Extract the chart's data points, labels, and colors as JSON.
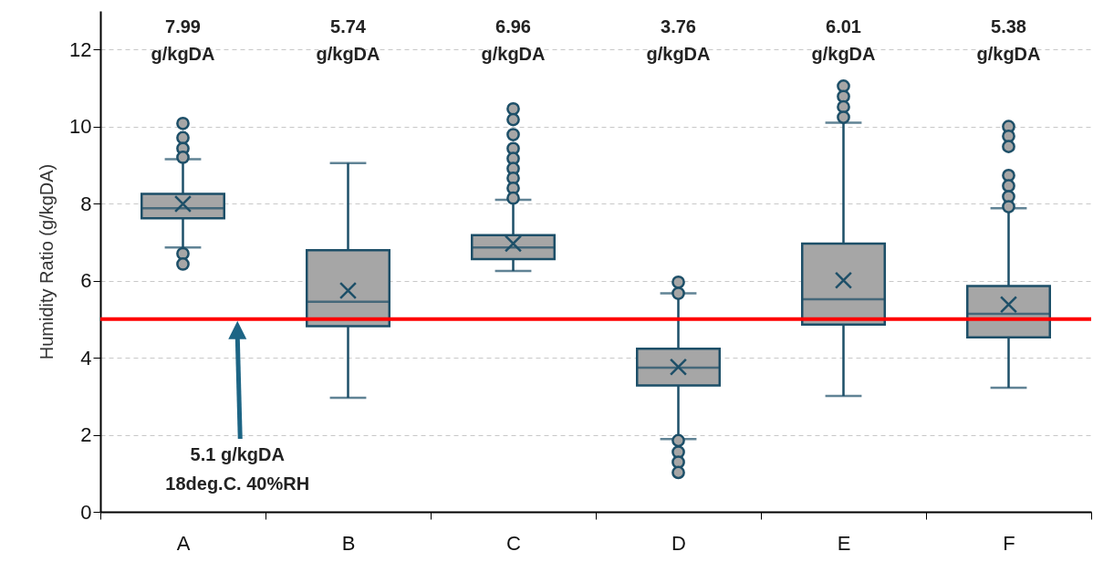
{
  "chart_data": {
    "type": "box",
    "ylabel": "Humidity Ratio (g/kgDA)",
    "categories": [
      "A",
      "B",
      "C",
      "D",
      "E",
      "F"
    ],
    "series": [
      {
        "color": "#a6a6a6",
        "boxes": [
          {
            "low": 6.86,
            "q1": 7.62,
            "median": 7.88,
            "q3": 8.25,
            "high": 9.15,
            "mean": 7.99,
            "outliers": [
              10.08,
              9.71,
              9.43,
              9.2,
              6.7,
              6.43
            ]
          },
          {
            "low": 2.96,
            "q1": 4.82,
            "median": 5.45,
            "q3": 6.79,
            "high": 9.05,
            "mean": 5.74
          },
          {
            "low": 6.25,
            "q1": 6.56,
            "median": 6.86,
            "q3": 7.18,
            "high": 8.1,
            "mean": 6.96,
            "outliers": [
              10.46,
              10.18,
              9.79,
              9.43,
              9.17,
              8.91,
              8.66,
              8.4,
              8.14
            ]
          },
          {
            "low": 1.89,
            "q1": 3.28,
            "median": 3.74,
            "q3": 4.23,
            "high": 5.67,
            "mean": 3.76,
            "outliers": [
              5.96,
              5.67,
              1.85,
              1.55,
              1.29,
              1.02
            ]
          },
          {
            "low": 3.01,
            "q1": 4.86,
            "median": 5.52,
            "q3": 6.96,
            "high": 10.1,
            "mean": 6.01,
            "outliers": [
              11.05,
              10.78,
              10.51,
              10.24
            ]
          },
          {
            "low": 3.22,
            "q1": 4.53,
            "median": 5.14,
            "q3": 5.86,
            "high": 7.88,
            "mean": 5.38,
            "outliers": [
              10.0,
              9.75,
              9.48,
              8.73,
              8.46,
              8.18,
              7.92
            ]
          }
        ],
        "value_labels": [
          "7.99 g/kgDA",
          "5.74 g/kgDA",
          "6.96 g/kgDA",
          "3.76 g/kgDA",
          "6.01 g/kgDA",
          "5.38 g/kgDA"
        ]
      }
    ],
    "ylim": [
      0,
      13
    ],
    "yticks": [
      0,
      2,
      4,
      6,
      8,
      10,
      12
    ],
    "grid": "y",
    "marker": "circle",
    "annotations": [
      "5.1 g/kgDA\n18deg.C. 40%RH"
    ],
    "ref_lines": [
      {
        "axis": "y",
        "value": 5,
        "color": "#ff0000"
      }
    ]
  }
}
